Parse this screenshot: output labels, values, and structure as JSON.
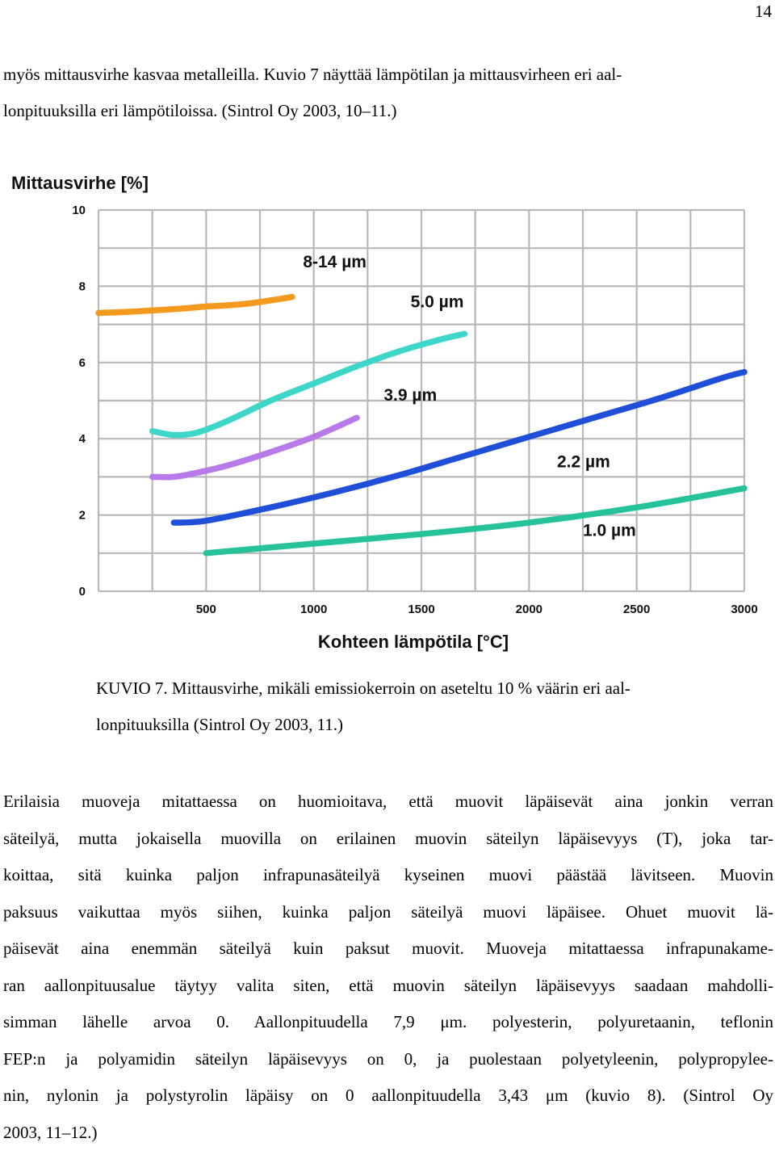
{
  "page_number": "14",
  "intro_lines": [
    "myös mittausvirhe kasvaa metalleilla. Kuvio 7 näyttää lämpötilan ja mittausvirheen eri aal-",
    "lonpituuksilla eri lämpötiloissa. (Sintrol Oy 2003, 10–11.)"
  ],
  "caption_lines": [
    "KUVIO 7. Mittausvirhe, mikäli emissiokerroin on aseteltu 10 % väärin eri aal-",
    "lonpituuksilla (Sintrol Oy 2003, 11.)"
  ],
  "body_lines": [
    "Erilaisia muoveja mitattaessa on huomioitava, että muovit läpäisevät aina jonkin verran",
    "säteilyä, mutta jokaisella muovilla on erilainen muovin säteilyn läpäisevyys (T), joka tar-",
    "koittaa, sitä kuinka paljon infrapunasäteilyä kyseinen muovi päästää lävitseen. Muovin",
    "paksuus vaikuttaa myös siihen, kuinka paljon säteilyä muovi läpäisee. Ohuet muovit lä-",
    "päisevät aina enemmän säteilyä kuin paksut muovit. Muoveja mitattaessa infrapunakame-",
    "ran aallonpituusalue täytyy valita siten, että muovin säteilyn läpäisevyys saadaan mahdolli-",
    "simman lähelle arvoa 0. Aallonpituudella 7,9 μm. polyesterin, polyuretaanin, teflonin",
    "FEP:n ja polyamidin säteilyn läpäisevyys on 0, ja puolestaan polyetyleenin, polypropylee-",
    "nin, nylonin ja polystyrolin läpäisy on 0 aallonpituudella 3,43 μm (kuvio 8). (Sintrol Oy",
    "2003, 11–12.)"
  ],
  "chart_data": {
    "type": "line",
    "ylabel": "Mittausvirhe [%]",
    "xlabel": "Kohteen lämpötila [°C]",
    "xlim": [
      0,
      3000
    ],
    "ylim": [
      0,
      10
    ],
    "x_ticks": [
      "500",
      "1000",
      "1500",
      "2000",
      "2500",
      "3000"
    ],
    "y_ticks": [
      "0",
      "2",
      "4",
      "6",
      "8",
      "10"
    ],
    "grid": true,
    "series": [
      {
        "name": "8-14 µm",
        "color": "#f39a1e",
        "x": [
          0,
          100,
          200,
          300,
          400,
          500,
          600,
          700,
          800,
          900
        ],
        "y": [
          7.3,
          7.32,
          7.35,
          7.38,
          7.42,
          7.47,
          7.5,
          7.55,
          7.63,
          7.72
        ]
      },
      {
        "name": "5.0 µm",
        "color": "#3ed6c8",
        "x": [
          250,
          350,
          450,
          550,
          650,
          800,
          1000,
          1200,
          1400,
          1600,
          1700
        ],
        "y": [
          4.2,
          4.1,
          4.15,
          4.35,
          4.6,
          5.0,
          5.45,
          5.9,
          6.3,
          6.62,
          6.75
        ]
      },
      {
        "name": "3.9 µm",
        "color": "#b87ae8",
        "x": [
          250,
          350,
          450,
          600,
          800,
          1000,
          1200
        ],
        "y": [
          3.0,
          3.0,
          3.1,
          3.3,
          3.65,
          4.05,
          4.55
        ]
      },
      {
        "name": "2.2 µm",
        "color": "#1f4fd8",
        "x": [
          350,
          500,
          800,
          1100,
          1400,
          1700,
          2000,
          2300,
          2600,
          2900,
          3000
        ],
        "y": [
          1.8,
          1.85,
          2.2,
          2.6,
          3.05,
          3.55,
          4.05,
          4.55,
          5.05,
          5.6,
          5.75
        ]
      },
      {
        "name": "1.0 µm",
        "color": "#26c39a",
        "x": [
          500,
          1000,
          1500,
          2000,
          2500,
          3000
        ],
        "y": [
          1.0,
          1.25,
          1.5,
          1.8,
          2.2,
          2.7
        ]
      }
    ]
  }
}
